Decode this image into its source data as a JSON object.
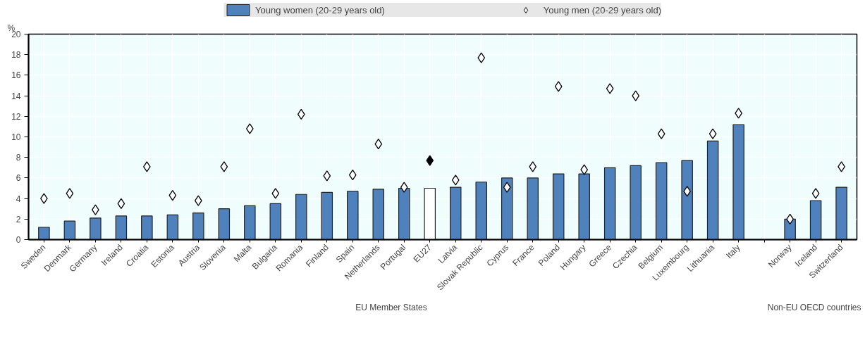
{
  "chart_data": {
    "type": "bar",
    "ylabel": "%",
    "categories": [
      "Sweden",
      "Denmark",
      "Germany",
      "Ireland",
      "Croatia",
      "Estonia",
      "Austria",
      "Slovenia",
      "Malta",
      "Bulgaria",
      "Romania",
      "Finland",
      "Spain",
      "Netherlands",
      "Portugal",
      "EU27",
      "Latvia",
      "Slovak Republic",
      "Cyprus",
      "France",
      "Poland",
      "Hungary",
      "Greece",
      "Czechia",
      "Belgium",
      "Luxembourg",
      "Lithuania",
      "Italy",
      null,
      "Norway",
      "Iceland",
      "Switzerland"
    ],
    "series": [
      {
        "name": "Young women (20-29 years old)",
        "type": "bar",
        "color": "#4f81bd",
        "colors": [
          "#4f81bd",
          "#4f81bd",
          "#4f81bd",
          "#4f81bd",
          "#4f81bd",
          "#4f81bd",
          "#4f81bd",
          "#4f81bd",
          "#4f81bd",
          "#4f81bd",
          "#4f81bd",
          "#4f81bd",
          "#4f81bd",
          "#4f81bd",
          "#4f81bd",
          "#ffffff",
          "#4f81bd",
          "#4f81bd",
          "#4f81bd",
          "#4f81bd",
          "#4f81bd",
          "#4f81bd",
          "#4f81bd",
          "#4f81bd",
          "#4f81bd",
          "#4f81bd",
          "#4f81bd",
          "#4f81bd",
          "#4f81bd",
          "#4f81bd",
          "#4f81bd",
          "#4f81bd"
        ],
        "values": [
          1.2,
          1.8,
          2.1,
          2.3,
          2.3,
          2.4,
          2.6,
          3.0,
          3.3,
          3.5,
          4.4,
          4.6,
          4.7,
          4.9,
          5.0,
          5.0,
          5.1,
          5.6,
          6.0,
          6.0,
          6.4,
          6.4,
          7.0,
          7.2,
          7.5,
          7.7,
          9.6,
          11.2,
          null,
          2.0,
          3.8,
          5.1
        ]
      },
      {
        "name": "Young men (20-29 years old)",
        "type": "scatter",
        "marker": "diamond",
        "color": "#ffffff",
        "colors": [
          "#ffffff",
          "#ffffff",
          "#ffffff",
          "#ffffff",
          "#ffffff",
          "#ffffff",
          "#ffffff",
          "#ffffff",
          "#ffffff",
          "#ffffff",
          "#ffffff",
          "#ffffff",
          "#ffffff",
          "#ffffff",
          "#ffffff",
          "#000000",
          "#ffffff",
          "#ffffff",
          "#ffffff",
          "#ffffff",
          "#ffffff",
          "#ffffff",
          "#ffffff",
          "#ffffff",
          "#ffffff",
          "#ffffff",
          "#ffffff",
          "#ffffff",
          "#ffffff",
          "#ffffff",
          "#ffffff",
          "#ffffff"
        ],
        "values": [
          4.0,
          4.5,
          2.9,
          3.5,
          7.1,
          4.3,
          3.8,
          7.1,
          10.8,
          4.5,
          12.2,
          6.2,
          6.3,
          9.3,
          5.1,
          7.7,
          5.8,
          17.7,
          5.1,
          7.1,
          14.9,
          6.8,
          14.7,
          14.0,
          10.3,
          4.7,
          10.3,
          12.3,
          null,
          2.0,
          4.5,
          7.1
        ]
      }
    ],
    "ylim": [
      0,
      20
    ],
    "yticks": [
      0,
      2,
      4,
      6,
      8,
      10,
      12,
      14,
      16,
      18,
      20
    ],
    "grid": true,
    "legend": "top",
    "annotations": [
      "EU Member States",
      "Non-EU OECD countries"
    ]
  }
}
